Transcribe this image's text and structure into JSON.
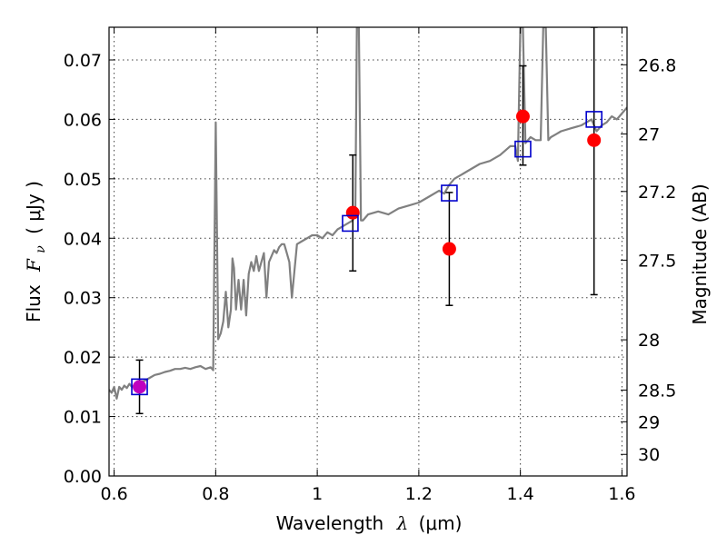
{
  "chart_data": {
    "type": "scatter",
    "xlabel_prefix": "Wavelength",
    "xlabel_symbol": "λ",
    "xlabel_unit": "(μm)",
    "ylabel_prefix": "Flux",
    "ylabel_symbol": "F",
    "ylabel_subscript": "ν",
    "ylabel_unit": "( μJy )",
    "ylabel_right": "Magnitude (AB)",
    "xlim": [
      0.59,
      1.61
    ],
    "ylim": [
      0.0,
      0.0755
    ],
    "x_ticks": [
      {
        "value": 0.6,
        "label": "0.6"
      },
      {
        "value": 0.8,
        "label": "0.8"
      },
      {
        "value": 1.0,
        "label": "1"
      },
      {
        "value": 1.2,
        "label": "1.2"
      },
      {
        "value": 1.4,
        "label": "1.4"
      },
      {
        "value": 1.6,
        "label": "1.6"
      }
    ],
    "y_ticks": [
      {
        "value": 0.0,
        "label": "0.00"
      },
      {
        "value": 0.01,
        "label": "0.01"
      },
      {
        "value": 0.02,
        "label": "0.02"
      },
      {
        "value": 0.03,
        "label": "0.03"
      },
      {
        "value": 0.04,
        "label": "0.04"
      },
      {
        "value": 0.05,
        "label": "0.05"
      },
      {
        "value": 0.06,
        "label": "0.06"
      },
      {
        "value": 0.07,
        "label": "0.07"
      }
    ],
    "mag_ticks": [
      {
        "value": 26.8,
        "label": "26.8"
      },
      {
        "value": 27.0,
        "label": "27"
      },
      {
        "value": 27.2,
        "label": "27.2"
      },
      {
        "value": 27.5,
        "label": "27.5"
      },
      {
        "value": 28.0,
        "label": "28"
      },
      {
        "value": 28.5,
        "label": "28.5"
      },
      {
        "value": 29.0,
        "label": "29"
      },
      {
        "value": 30.0,
        "label": "30"
      }
    ],
    "grid": true,
    "colors": {
      "model": "#808080",
      "observed": "#ff0000",
      "observed_first": "#bf00bf",
      "model_band": "#0000cc",
      "errorbar": "#000000"
    },
    "model_spectrum": {
      "x": [
        0.59,
        0.595,
        0.6,
        0.605,
        0.61,
        0.615,
        0.62,
        0.625,
        0.63,
        0.635,
        0.64,
        0.65,
        0.66,
        0.67,
        0.68,
        0.69,
        0.7,
        0.71,
        0.72,
        0.73,
        0.74,
        0.75,
        0.76,
        0.77,
        0.78,
        0.79,
        0.795,
        0.8,
        0.805,
        0.81,
        0.815,
        0.82,
        0.825,
        0.83,
        0.833,
        0.836,
        0.84,
        0.845,
        0.85,
        0.855,
        0.86,
        0.865,
        0.87,
        0.875,
        0.88,
        0.885,
        0.89,
        0.895,
        0.9,
        0.905,
        0.91,
        0.915,
        0.92,
        0.925,
        0.93,
        0.935,
        0.94,
        0.945,
        0.95,
        0.96,
        0.97,
        0.98,
        0.99,
        1.0,
        1.01,
        1.02,
        1.03,
        1.04,
        1.05,
        1.06,
        1.07,
        1.075,
        1.078,
        1.082,
        1.086,
        1.09,
        1.1,
        1.12,
        1.14,
        1.16,
        1.18,
        1.2,
        1.22,
        1.24,
        1.25,
        1.26,
        1.27,
        1.28,
        1.3,
        1.32,
        1.34,
        1.36,
        1.38,
        1.39,
        1.395,
        1.4,
        1.405,
        1.41,
        1.42,
        1.43,
        1.44,
        1.445,
        1.45,
        1.455,
        1.46,
        1.47,
        1.48,
        1.5,
        1.52,
        1.54,
        1.55,
        1.56,
        1.57,
        1.58,
        1.59,
        1.6,
        1.61
      ],
      "y": [
        0.0145,
        0.014,
        0.015,
        0.013,
        0.015,
        0.0145,
        0.0152,
        0.0148,
        0.0155,
        0.015,
        0.0152,
        0.0158,
        0.016,
        0.0165,
        0.017,
        0.0172,
        0.0175,
        0.0177,
        0.018,
        0.018,
        0.0182,
        0.018,
        0.0183,
        0.0185,
        0.018,
        0.0183,
        0.0178,
        0.0595,
        0.023,
        0.024,
        0.026,
        0.031,
        0.025,
        0.028,
        0.0366,
        0.035,
        0.028,
        0.033,
        0.028,
        0.033,
        0.027,
        0.034,
        0.036,
        0.0345,
        0.037,
        0.0345,
        0.036,
        0.0375,
        0.03,
        0.036,
        0.037,
        0.038,
        0.0375,
        0.0385,
        0.039,
        0.039,
        0.0375,
        0.036,
        0.03,
        0.039,
        0.0395,
        0.04,
        0.0405,
        0.0405,
        0.04,
        0.041,
        0.0405,
        0.0415,
        0.042,
        0.0425,
        0.043,
        0.044,
        0.0755,
        0.0755,
        0.043,
        0.043,
        0.044,
        0.0445,
        0.044,
        0.045,
        0.0455,
        0.046,
        0.047,
        0.048,
        0.0475,
        0.049,
        0.05,
        0.0505,
        0.0515,
        0.0525,
        0.053,
        0.054,
        0.0555,
        0.0555,
        0.053,
        0.0755,
        0.0755,
        0.056,
        0.057,
        0.0565,
        0.0565,
        0.0755,
        0.0755,
        0.0565,
        0.057,
        0.0575,
        0.058,
        0.0585,
        0.059,
        0.06,
        0.058,
        0.059,
        0.0595,
        0.0605,
        0.06,
        0.061,
        0.062
      ]
    },
    "observed_points": [
      {
        "x": 0.65,
        "y": 0.015,
        "yerr_low": 0.0105,
        "yerr_high": 0.0195
      },
      {
        "x": 1.07,
        "y": 0.0443,
        "yerr_low": 0.0345,
        "yerr_high": 0.054
      },
      {
        "x": 1.26,
        "y": 0.0382,
        "yerr_low": 0.0287,
        "yerr_high": 0.0477
      },
      {
        "x": 1.405,
        "y": 0.0605,
        "yerr_low": 0.0523,
        "yerr_high": 0.069
      },
      {
        "x": 1.545,
        "y": 0.0565,
        "yerr_low": 0.0305,
        "yerr_high": 0.0755
      }
    ],
    "model_band_points": [
      {
        "x": 0.65,
        "y": 0.015
      },
      {
        "x": 1.065,
        "y": 0.0425
      },
      {
        "x": 1.26,
        "y": 0.0476
      },
      {
        "x": 1.405,
        "y": 0.055
      },
      {
        "x": 1.545,
        "y": 0.06
      }
    ]
  }
}
